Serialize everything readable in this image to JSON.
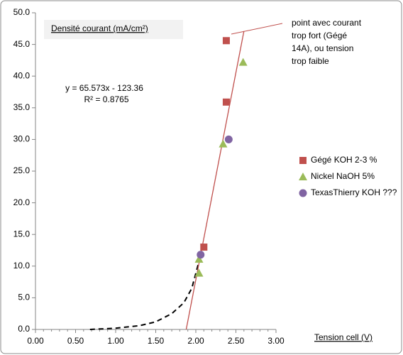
{
  "chart_data": {
    "type": "scatter",
    "title": "Densité courant (mA/cm²)",
    "x_label": "Tension cell (V)",
    "xlim": [
      0,
      3
    ],
    "ylim": [
      0,
      50
    ],
    "xticks": [
      {
        "value": 0,
        "label": "0.00"
      },
      {
        "value": 0.5,
        "label": "0.50"
      },
      {
        "value": 1,
        "label": "1.00"
      },
      {
        "value": 1.5,
        "label": "1.50"
      },
      {
        "value": 2,
        "label": "2.00"
      },
      {
        "value": 2.5,
        "label": "2.50"
      },
      {
        "value": 3,
        "label": "3.00"
      }
    ],
    "yticks": [
      {
        "value": 0,
        "label": "0.0"
      },
      {
        "value": 5,
        "label": "5.0"
      },
      {
        "value": 10,
        "label": "10.0"
      },
      {
        "value": 15,
        "label": "15.0"
      },
      {
        "value": 20,
        "label": "20.0"
      },
      {
        "value": 25,
        "label": "25.0"
      },
      {
        "value": 30,
        "label": "30.0"
      },
      {
        "value": 35,
        "label": "35.0"
      },
      {
        "value": 40,
        "label": "40.0"
      },
      {
        "value": 45,
        "label": "45.0"
      },
      {
        "value": 50,
        "label": "50.0"
      }
    ],
    "grid": false,
    "series": [
      {
        "name": "Gégé KOH 2-3 %",
        "color": "#c0504d",
        "marker": "square",
        "x": [
          2.38,
          2.38,
          2.1
        ],
        "values": [
          45.6,
          35.9,
          13.0
        ]
      },
      {
        "name": "Nickel NaOH 5%",
        "color": "#9bbb59",
        "marker": "triangle",
        "x": [
          2.59,
          2.34,
          2.04,
          2.04
        ],
        "values": [
          42.2,
          29.3,
          11.1,
          8.9
        ]
      },
      {
        "name": "TexasThierry KOH ???",
        "color": "#8064a2",
        "marker": "circle",
        "x": [
          2.41,
          2.06
        ],
        "values": [
          30.0,
          11.8
        ]
      }
    ],
    "trendline": {
      "equation": "y = 65.573x - 123.36",
      "r2": "R² = 0.8765",
      "color": "#c0504d",
      "x": [
        1.88,
        2.6
      ],
      "values": [
        0,
        47.1
      ]
    },
    "curve": {
      "color": "#000000",
      "x": [
        0.68,
        1.0,
        1.3,
        1.5,
        1.7,
        1.85,
        1.95,
        2.03
      ],
      "values": [
        0,
        0.2,
        0.6,
        1.2,
        2.5,
        4.2,
        6.5,
        10.3
      ]
    },
    "annotation": [
      "point  avec courant",
      "trop fort (Gégé",
      "14A), ou tension",
      "trop faible"
    ],
    "legend": "right"
  }
}
